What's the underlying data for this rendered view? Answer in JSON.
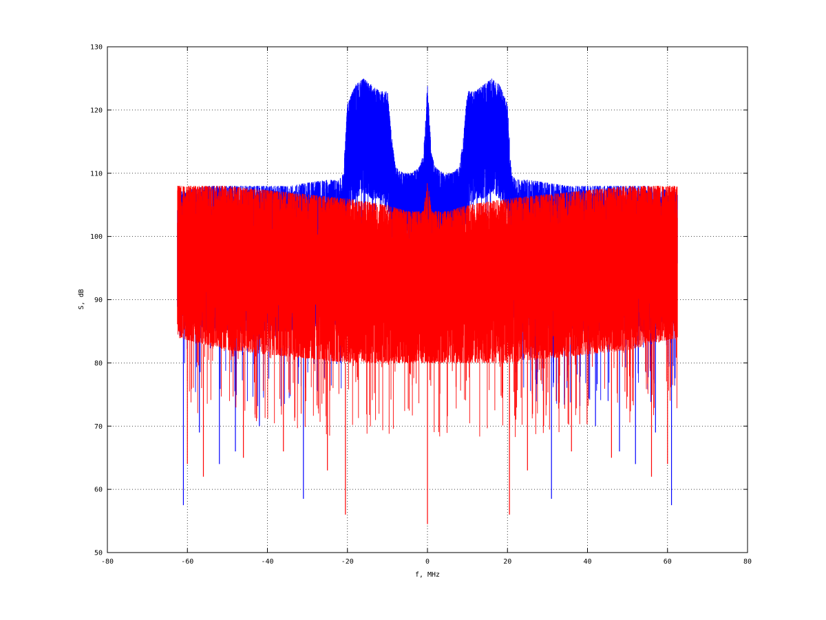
{
  "chart_data": {
    "type": "line",
    "title": "",
    "xlabel": "f, MHz",
    "ylabel": "S, dB",
    "xlim": [
      -80,
      80
    ],
    "ylim": [
      50,
      130
    ],
    "xticks": [
      -80,
      -60,
      -40,
      -20,
      0,
      20,
      40,
      60,
      80
    ],
    "yticks": [
      50,
      60,
      70,
      80,
      90,
      100,
      110,
      120,
      130
    ],
    "x_data_range": [
      -62.5,
      62.5
    ],
    "grid": true,
    "legend": "none",
    "series": [
      {
        "color": "#0000ff",
        "envelope": {
          "x": [
            -62.5,
            -55,
            -45,
            -35,
            -25,
            -22,
            -21,
            -20,
            -18,
            -16,
            -14,
            -12,
            -10,
            -9,
            -8,
            -6,
            -4,
            -2,
            -1,
            0,
            1,
            2,
            4,
            6,
            8,
            9,
            10,
            12,
            14,
            16,
            18,
            20,
            21,
            22,
            25,
            35,
            45,
            55,
            62.5
          ],
          "upper": [
            107,
            108,
            108,
            108,
            109,
            109,
            110,
            121,
            124,
            125,
            124,
            123,
            123,
            116,
            111,
            110,
            110,
            111,
            113,
            124,
            113,
            111,
            110,
            110,
            111,
            116,
            123,
            123,
            124,
            125,
            124,
            121,
            110,
            109,
            109,
            108,
            108,
            108,
            107
          ],
          "lower": [
            88,
            85,
            85,
            85,
            86,
            86,
            88,
            104,
            106,
            107,
            106,
            106,
            104,
            100,
            98,
            98,
            99,
            99,
            100,
            100,
            100,
            99,
            99,
            98,
            98,
            100,
            104,
            106,
            106,
            107,
            106,
            104,
            88,
            86,
            86,
            85,
            85,
            85,
            88
          ]
        },
        "deep_spikes": [
          [
            -61,
            57.5
          ],
          [
            -57,
            69
          ],
          [
            -52,
            64
          ],
          [
            -48,
            66
          ],
          [
            -42,
            70
          ],
          [
            -31,
            58.5
          ],
          [
            31,
            58.5
          ],
          [
            42,
            70
          ],
          [
            48,
            66
          ],
          [
            52,
            64
          ],
          [
            57,
            69
          ],
          [
            61,
            57.5
          ]
        ]
      },
      {
        "color": "#ff0000",
        "envelope": {
          "x": [
            -62.5,
            -50,
            -35,
            -20,
            -10,
            -5,
            -1,
            0,
            1,
            5,
            10,
            20,
            35,
            50,
            62.5
          ],
          "upper": [
            108,
            108,
            107,
            106,
            105,
            104,
            104,
            109,
            104,
            104,
            105,
            106,
            107,
            108,
            108
          ],
          "lower": [
            84,
            82,
            81,
            80,
            80,
            80,
            80,
            80,
            80,
            80,
            80,
            80,
            81,
            82,
            84
          ]
        },
        "deep_spikes": [
          [
            -60,
            64
          ],
          [
            -56,
            62
          ],
          [
            -46,
            65
          ],
          [
            -36,
            66
          ],
          [
            -25,
            63
          ],
          [
            -20.5,
            56
          ],
          [
            0,
            54.5
          ],
          [
            20.5,
            56
          ],
          [
            25,
            63
          ],
          [
            36,
            66
          ],
          [
            46,
            65
          ],
          [
            56,
            62
          ],
          [
            60,
            64
          ]
        ]
      }
    ]
  }
}
